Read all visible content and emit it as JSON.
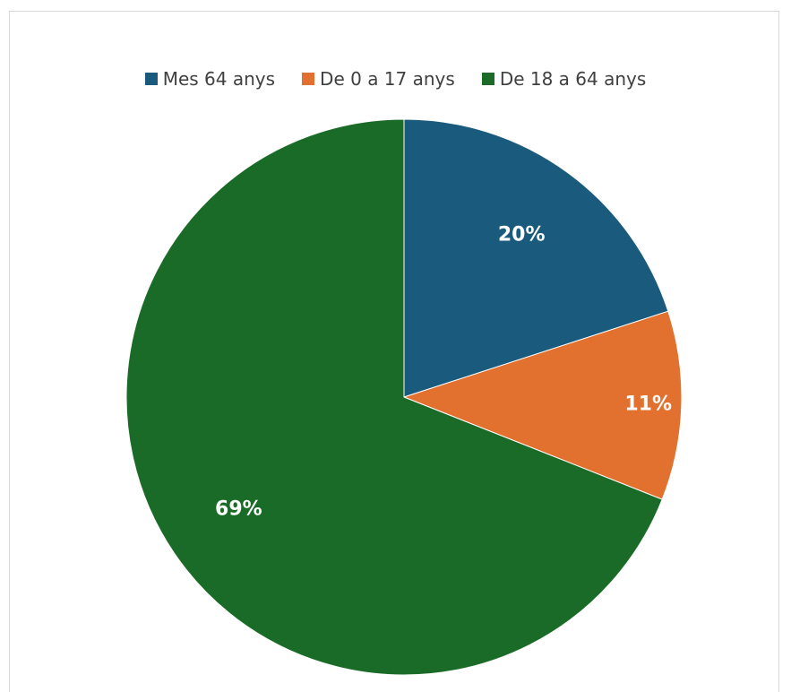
{
  "chart_data": {
    "type": "pie",
    "title": "",
    "legend_position": "top",
    "slices": [
      {
        "name": "Mes 64 anys",
        "value": 20,
        "label": "20%",
        "color": "#1a5b7d"
      },
      {
        "name": "De 0 a 17 anys",
        "value": 11,
        "label": "11%",
        "color": "#e2702f"
      },
      {
        "name": "De 18 a 64 anys",
        "value": 69,
        "label": "69%",
        "color": "#1b6b28"
      }
    ]
  }
}
